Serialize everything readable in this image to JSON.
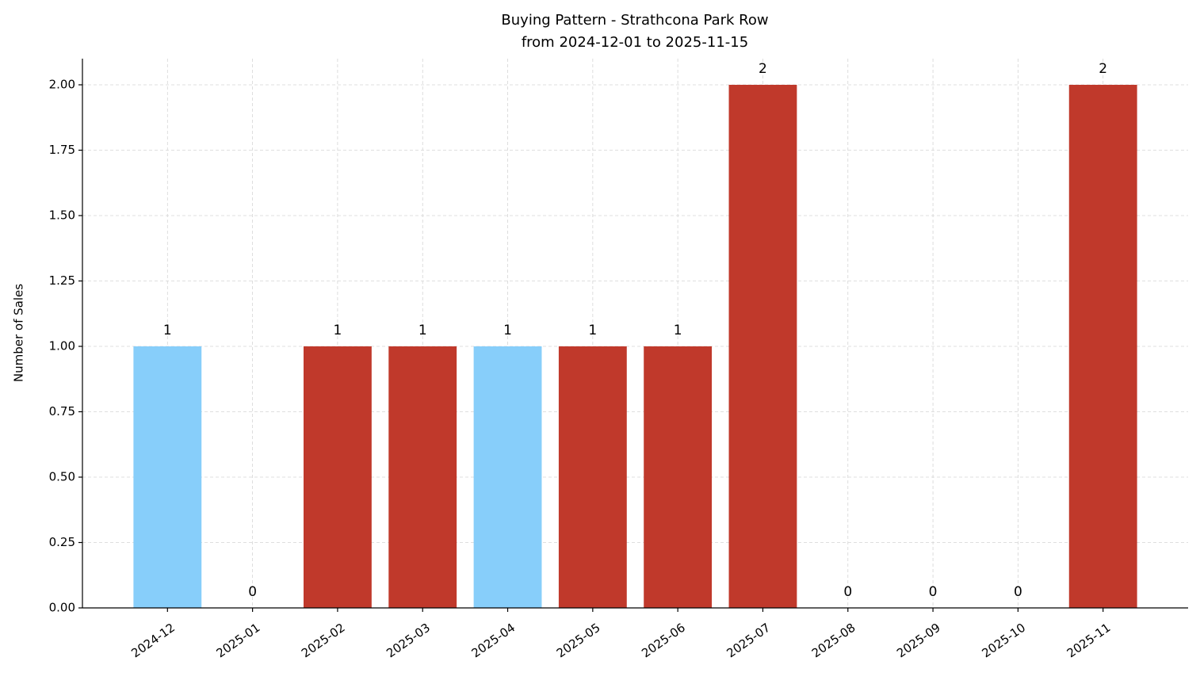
{
  "chart_data": {
    "type": "bar",
    "title": "Buying Pattern - Strathcona Park Row",
    "subtitle": "from 2024-12-01 to 2025-11-15",
    "y_label": "Number of Sales",
    "categories": [
      "2024-12",
      "2025-01",
      "2025-02",
      "2025-03",
      "2025-04",
      "2025-05",
      "2025-06",
      "2025-07",
      "2025-08",
      "2025-09",
      "2025-10",
      "2025-11"
    ],
    "values": [
      1,
      0,
      1,
      1,
      1,
      1,
      1,
      2,
      0,
      0,
      0,
      2
    ],
    "colors": [
      "#87cefa",
      "#c0392b",
      "#c0392b",
      "#c0392b",
      "#87cefa",
      "#c0392b",
      "#c0392b",
      "#c0392b",
      "#c0392b",
      "#c0392b",
      "#c0392b",
      "#c0392b"
    ],
    "ylim": [
      0,
      2.1
    ],
    "yticks": [
      {
        "value": 0,
        "label": "0.00"
      },
      {
        "value": 0.25,
        "label": "0.25"
      },
      {
        "value": 0.5,
        "label": "0.50"
      },
      {
        "value": 0.75,
        "label": "0.75"
      },
      {
        "value": 1,
        "label": "1.00"
      },
      {
        "value": 1.25,
        "label": "1.25"
      },
      {
        "value": 1.5,
        "label": "1.50"
      },
      {
        "value": 1.75,
        "label": "1.75"
      },
      {
        "value": 2,
        "label": "2.00"
      }
    ],
    "grid": true
  }
}
